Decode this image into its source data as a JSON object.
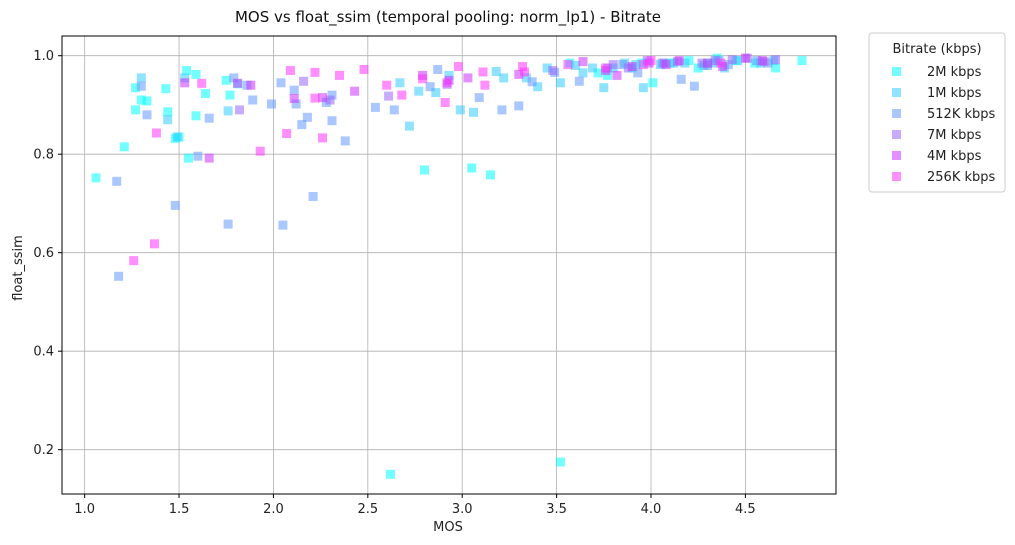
{
  "chart_data": {
    "type": "scatter",
    "title": "MOS vs float_ssim (temporal pooling: norm_lp1) - Bitrate",
    "xlabel": "MOS",
    "ylabel": "float_ssim",
    "xlim": [
      0.88,
      4.98
    ],
    "ylim": [
      0.11,
      1.04
    ],
    "xticks": [
      1.0,
      1.5,
      2.0,
      2.5,
      3.0,
      3.5,
      4.0,
      4.5
    ],
    "xtick_labels": [
      "1.0",
      "1.5",
      "2.0",
      "2.5",
      "3.0",
      "3.5",
      "4.0",
      "4.5"
    ],
    "yticks": [
      0.2,
      0.4,
      0.6,
      0.8,
      1.0
    ],
    "ytick_labels": [
      "0.2",
      "0.4",
      "0.6",
      "0.8",
      "1.0"
    ],
    "grid": true,
    "legend": {
      "title": "Bitrate (kbps)",
      "placement": "outside-top-right"
    },
    "series": [
      {
        "name": "2M kbps",
        "color": "#00ffff",
        "points": [
          [
            1.06,
            0.752
          ],
          [
            1.21,
            0.815
          ],
          [
            1.27,
            0.89
          ],
          [
            1.27,
            0.935
          ],
          [
            1.3,
            0.91
          ],
          [
            1.33,
            0.908
          ],
          [
            1.43,
            0.933
          ],
          [
            1.44,
            0.886
          ],
          [
            1.48,
            0.832
          ],
          [
            1.5,
            0.835
          ],
          [
            1.54,
            0.97
          ],
          [
            1.55,
            0.792
          ],
          [
            1.59,
            0.962
          ],
          [
            1.59,
            0.878
          ],
          [
            1.64,
            0.923
          ],
          [
            1.75,
            0.95
          ],
          [
            1.77,
            0.92
          ],
          [
            1.81,
            0.943
          ],
          [
            2.62,
            0.15
          ],
          [
            2.8,
            0.768
          ],
          [
            3.05,
            0.772
          ],
          [
            3.15,
            0.758
          ],
          [
            3.52,
            0.175
          ],
          [
            3.57,
            0.985
          ],
          [
            3.72,
            0.965
          ],
          [
            3.77,
            0.96
          ],
          [
            3.9,
            0.975
          ],
          [
            3.95,
            0.985
          ],
          [
            4.01,
            0.945
          ],
          [
            4.1,
            0.985
          ],
          [
            4.2,
            0.99
          ],
          [
            4.25,
            0.975
          ],
          [
            4.3,
            0.985
          ],
          [
            4.35,
            0.995
          ],
          [
            4.45,
            0.99
          ],
          [
            4.55,
            0.985
          ],
          [
            4.66,
            0.975
          ],
          [
            4.8,
            0.99
          ]
        ]
      },
      {
        "name": "1M kbps",
        "color": "#33ccff",
        "points": [
          [
            1.3,
            0.955
          ],
          [
            1.44,
            0.87
          ],
          [
            1.49,
            0.835
          ],
          [
            1.53,
            0.955
          ],
          [
            1.76,
            0.888
          ],
          [
            2.67,
            0.945
          ],
          [
            2.72,
            0.857
          ],
          [
            2.77,
            0.928
          ],
          [
            2.86,
            0.925
          ],
          [
            2.93,
            0.96
          ],
          [
            2.99,
            0.89
          ],
          [
            3.06,
            0.885
          ],
          [
            3.18,
            0.968
          ],
          [
            3.22,
            0.955
          ],
          [
            3.34,
            0.955
          ],
          [
            3.4,
            0.937
          ],
          [
            3.45,
            0.975
          ],
          [
            3.52,
            0.945
          ],
          [
            3.6,
            0.98
          ],
          [
            3.64,
            0.965
          ],
          [
            3.69,
            0.975
          ],
          [
            3.75,
            0.935
          ],
          [
            3.8,
            0.975
          ],
          [
            3.86,
            0.985
          ],
          [
            3.92,
            0.982
          ],
          [
            3.96,
            0.935
          ],
          [
            4.05,
            0.982
          ],
          [
            4.12,
            0.985
          ],
          [
            4.18,
            0.985
          ],
          [
            4.28,
            0.98
          ],
          [
            4.33,
            0.985
          ],
          [
            4.39,
            0.975
          ],
          [
            4.46,
            0.99
          ],
          [
            4.58,
            0.985
          ],
          [
            4.65,
            0.99
          ]
        ]
      },
      {
        "name": "512K kbps",
        "color": "#6699ff",
        "points": [
          [
            1.17,
            0.745
          ],
          [
            1.18,
            0.552
          ],
          [
            1.3,
            0.938
          ],
          [
            1.33,
            0.88
          ],
          [
            1.48,
            0.696
          ],
          [
            1.6,
            0.796
          ],
          [
            1.66,
            0.873
          ],
          [
            1.76,
            0.658
          ],
          [
            1.79,
            0.955
          ],
          [
            1.86,
            0.94
          ],
          [
            1.89,
            0.91
          ],
          [
            1.99,
            0.902
          ],
          [
            2.04,
            0.945
          ],
          [
            2.05,
            0.656
          ],
          [
            2.11,
            0.93
          ],
          [
            2.12,
            0.902
          ],
          [
            2.15,
            0.86
          ],
          [
            2.18,
            0.875
          ],
          [
            2.21,
            0.714
          ],
          [
            2.28,
            0.905
          ],
          [
            2.31,
            0.92
          ],
          [
            2.31,
            0.868
          ],
          [
            2.38,
            0.827
          ],
          [
            2.54,
            0.895
          ],
          [
            2.64,
            0.89
          ],
          [
            2.83,
            0.937
          ],
          [
            2.87,
            0.972
          ],
          [
            3.09,
            0.915
          ],
          [
            3.21,
            0.89
          ],
          [
            3.3,
            0.898
          ],
          [
            3.37,
            0.947
          ],
          [
            3.49,
            0.966
          ],
          [
            3.62,
            0.948
          ],
          [
            3.77,
            0.975
          ],
          [
            3.85,
            0.982
          ],
          [
            3.93,
            0.965
          ],
          [
            4.06,
            0.985
          ],
          [
            4.16,
            0.952
          ],
          [
            4.23,
            0.938
          ],
          [
            4.3,
            0.98
          ],
          [
            4.36,
            0.99
          ],
          [
            4.41,
            0.982
          ],
          [
            4.56,
            0.99
          ],
          [
            4.62,
            0.985
          ]
        ]
      },
      {
        "name": "7M kbps",
        "color": "#9966ff",
        "points": [
          [
            1.82,
            0.89
          ],
          [
            2.16,
            0.948
          ],
          [
            2.3,
            0.91
          ],
          [
            2.61,
            0.918
          ],
          [
            2.92,
            0.942
          ],
          [
            3.48,
            0.97
          ],
          [
            3.8,
            0.982
          ],
          [
            3.88,
            0.975
          ],
          [
            3.98,
            0.99
          ],
          [
            4.07,
            0.985
          ],
          [
            4.14,
            0.988
          ],
          [
            4.27,
            0.985
          ],
          [
            4.34,
            0.99
          ],
          [
            4.43,
            0.992
          ],
          [
            4.51,
            0.995
          ],
          [
            4.6,
            0.988
          ],
          [
            4.66,
            0.992
          ]
        ]
      },
      {
        "name": "4M kbps",
        "color": "#cc33ff",
        "points": [
          [
            1.53,
            0.945
          ],
          [
            1.66,
            0.792
          ],
          [
            1.81,
            0.944
          ],
          [
            1.88,
            0.94
          ],
          [
            2.11,
            0.913
          ],
          [
            2.26,
            0.915
          ],
          [
            2.43,
            0.928
          ],
          [
            2.79,
            0.96
          ],
          [
            2.93,
            0.95
          ],
          [
            3.03,
            0.955
          ],
          [
            3.3,
            0.962
          ],
          [
            3.64,
            0.988
          ],
          [
            3.76,
            0.97
          ],
          [
            3.82,
            0.96
          ],
          [
            3.9,
            0.978
          ],
          [
            3.99,
            0.985
          ],
          [
            4.08,
            0.982
          ],
          [
            4.15,
            0.99
          ],
          [
            4.3,
            0.985
          ],
          [
            4.38,
            0.978
          ],
          [
            4.5,
            0.995
          ],
          [
            4.59,
            0.99
          ]
        ]
      },
      {
        "name": "256K kbps",
        "color": "#ff33ff",
        "points": [
          [
            1.26,
            0.584
          ],
          [
            1.37,
            0.618
          ],
          [
            1.38,
            0.843
          ],
          [
            1.62,
            0.944
          ],
          [
            1.93,
            0.806
          ],
          [
            2.07,
            0.842
          ],
          [
            2.09,
            0.97
          ],
          [
            2.22,
            0.966
          ],
          [
            2.22,
            0.914
          ],
          [
            2.26,
            0.833
          ],
          [
            2.35,
            0.96
          ],
          [
            2.48,
            0.972
          ],
          [
            2.6,
            0.94
          ],
          [
            2.68,
            0.92
          ],
          [
            2.79,
            0.953
          ],
          [
            2.91,
            0.905
          ],
          [
            2.92,
            0.945
          ],
          [
            2.98,
            0.978
          ],
          [
            3.12,
            0.94
          ],
          [
            3.11,
            0.967
          ],
          [
            3.32,
            0.978
          ],
          [
            3.33,
            0.967
          ],
          [
            3.56,
            0.982
          ],
          [
            3.76,
            0.975
          ],
          [
            3.96,
            0.982
          ],
          [
            4.0,
            0.99
          ],
          [
            4.37,
            0.985
          ]
        ]
      }
    ]
  }
}
